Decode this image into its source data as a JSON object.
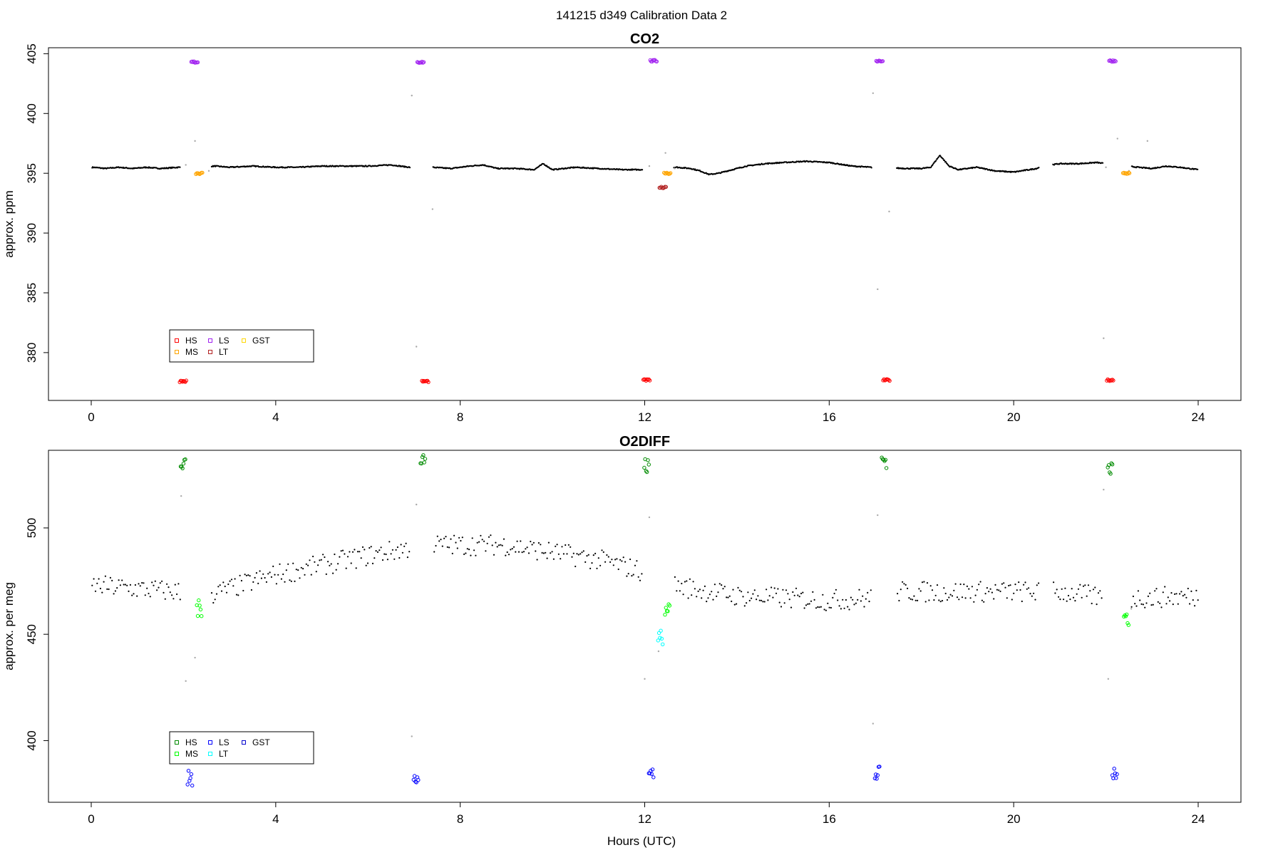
{
  "title": "141215   d349   Calibration Data 2",
  "xlabel": "Hours (UTC)",
  "chart_data": [
    {
      "type": "scatter",
      "title": "CO2",
      "xlabel": "",
      "ylabel": "approx. ppm",
      "xlim": [
        0,
        24
      ],
      "ylim": [
        376,
        405.5
      ],
      "xticks": [
        0,
        4,
        8,
        12,
        16,
        20,
        24
      ],
      "yticks": [
        380,
        385,
        390,
        395,
        400,
        405
      ],
      "legend": {
        "placement": "bottom-left",
        "entries": [
          {
            "name": "HS",
            "color": "#ff0000"
          },
          {
            "name": "MS",
            "color": "#ffa500"
          },
          {
            "name": "LS",
            "color": "#a020f0"
          },
          {
            "name": "LT",
            "color": "#b22222"
          },
          {
            "name": "GST",
            "color": "#ffd700"
          }
        ]
      },
      "ambient": {
        "color": "#000000",
        "x": [
          0.05,
          0.3,
          0.6,
          0.9,
          1.2,
          1.5,
          1.9,
          2.7,
          3.0,
          3.5,
          4.0,
          4.5,
          5.0,
          5.5,
          6.0,
          6.5,
          6.9,
          7.4,
          7.8,
          8.2,
          8.5,
          8.8,
          9.2,
          9.6,
          9.8,
          10.0,
          10.5,
          11.0,
          11.5,
          11.9,
          12.7,
          13.0,
          13.2,
          13.4,
          13.6,
          13.9,
          14.2,
          14.6,
          15.0,
          15.5,
          16.0,
          16.5,
          16.9,
          17.7,
          18.0,
          18.2,
          18.4,
          18.6,
          18.8,
          19.2,
          19.6,
          20.0,
          20.5,
          20.6,
          21.0,
          21.4,
          21.8,
          22.0,
          22.7,
          23.0,
          23.3,
          23.6,
          24.0
        ],
        "y": [
          395.5,
          395.4,
          395.5,
          395.4,
          395.5,
          395.4,
          395.5,
          395.6,
          395.5,
          395.6,
          395.5,
          395.5,
          395.6,
          395.6,
          395.6,
          395.7,
          395.5,
          395.5,
          395.4,
          395.6,
          395.7,
          395.4,
          395.4,
          395.3,
          395.8,
          395.3,
          395.5,
          395.4,
          395.3,
          395.3,
          395.5,
          395.4,
          395.2,
          394.9,
          395.0,
          395.3,
          395.6,
          395.8,
          395.9,
          396.0,
          395.9,
          395.6,
          395.5,
          395.4,
          395.4,
          395.5,
          396.5,
          395.6,
          395.3,
          395.5,
          395.2,
          395.1,
          395.4,
          395.6,
          395.8,
          395.8,
          395.9,
          395.8,
          395.5,
          395.4,
          395.6,
          395.5,
          395.3
        ]
      },
      "transitional": {
        "color": "#a9a9a9",
        "x": [
          1.95,
          2.05,
          2.25,
          2.55,
          6.95,
          7.05,
          7.4,
          12.1,
          12.45,
          12.65,
          16.95,
          17.05,
          17.3,
          21.95,
          22.0,
          22.25,
          22.5,
          22.9
        ],
        "y": [
          381.5,
          395.7,
          397.7,
          395.2,
          401.5,
          380.5,
          392,
          395.6,
          396.7,
          395.4,
          401.7,
          385.3,
          391.8,
          381.2,
          395.5,
          397.9,
          395.2,
          397.7
        ]
      },
      "calibration": [
        {
          "name": "LS",
          "color": "#a020f0",
          "x": [
            2.25,
            7.15,
            12.2,
            17.1,
            22.15
          ],
          "y": [
            404.3,
            404.3,
            404.4,
            404.4,
            404.4
          ]
        },
        {
          "name": "HS",
          "color": "#ff0000",
          "x": [
            2.0,
            7.25,
            12.05,
            17.25,
            22.1
          ],
          "y": [
            377.6,
            377.6,
            377.7,
            377.7,
            377.7
          ]
        },
        {
          "name": "MS",
          "color": "#ffa500",
          "x": [
            2.35,
            12.5,
            22.45
          ],
          "y": [
            395.0,
            395.0,
            395.0
          ]
        },
        {
          "name": "LT",
          "color": "#b22222",
          "x": [
            12.4
          ],
          "y": [
            393.8
          ]
        }
      ]
    },
    {
      "type": "scatter",
      "title": "O2DIFF",
      "xlabel": "Hours (UTC)",
      "ylabel": "approx. per meg",
      "xlim": [
        0,
        24
      ],
      "ylim": [
        371,
        536.5
      ],
      "xticks": [
        0,
        4,
        8,
        12,
        16,
        20,
        24
      ],
      "yticks": [
        400,
        450,
        500
      ],
      "legend": {
        "placement": "bottom-left",
        "entries": [
          {
            "name": "HS",
            "color": "#008b00"
          },
          {
            "name": "MS",
            "color": "#00ff00"
          },
          {
            "name": "LS",
            "color": "#0000ff"
          },
          {
            "name": "LT",
            "color": "#00ffff"
          },
          {
            "name": "GST",
            "color": "#0000cd"
          }
        ]
      },
      "ambient_trend": {
        "color": "#000000",
        "x": [
          0.0,
          1.9,
          2.5,
          4.0,
          6.0,
          7.0,
          7.4,
          9.0,
          11.0,
          11.9,
          12.6,
          14.0,
          16.0,
          17.0,
          17.5,
          20.5,
          21.0,
          22.0,
          22.6,
          24.0
        ],
        "y": [
          473,
          470,
          468,
          478,
          487,
          491,
          492,
          492,
          485,
          480,
          473,
          468,
          466,
          467,
          470,
          470,
          470,
          467,
          467,
          468
        ],
        "spread": 5
      },
      "transitional": {
        "color": "#a9a9a9",
        "x": [
          1.95,
          2.05,
          2.25,
          6.95,
          7.05,
          12.0,
          12.1,
          12.3,
          16.95,
          17.05,
          21.95,
          22.05,
          22.55
        ],
        "y": [
          515,
          428,
          439,
          402,
          511,
          429,
          505,
          442,
          408,
          506,
          518,
          429,
          462
        ]
      },
      "calibration": [
        {
          "name": "HS",
          "color": "#008b00",
          "x": [
            2.0,
            7.2,
            12.05,
            17.2,
            22.1
          ],
          "y": [
            532,
            532,
            529,
            532,
            528
          ]
        },
        {
          "name": "LS",
          "color": "#0000ff",
          "x": [
            2.15,
            7.05,
            12.15,
            17.05,
            22.2
          ],
          "y": [
            382,
            384,
            384,
            384,
            384
          ]
        },
        {
          "name": "MS",
          "color": "#00ff00",
          "x": [
            2.35,
            12.5,
            22.45
          ],
          "y": [
            462,
            463,
            458
          ]
        },
        {
          "name": "LT",
          "color": "#00ffff",
          "x": [
            12.35
          ],
          "y": [
            449
          ]
        }
      ]
    }
  ]
}
